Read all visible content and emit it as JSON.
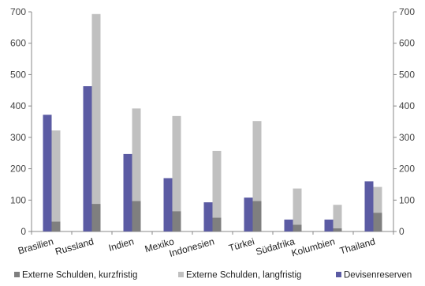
{
  "chart_data": {
    "type": "bar",
    "categories": [
      "Brasilien",
      "Russland",
      "Indien",
      "Mexiko",
      "Indonesien",
      "Türkei",
      "Südafrika",
      "Kolumbien",
      "Thailand"
    ],
    "series": [
      {
        "name": "Devisenreserven",
        "color": "#5b5ba3",
        "values": [
          372,
          463,
          247,
          170,
          93,
          108,
          38,
          38,
          160
        ]
      },
      {
        "name": "Externe Schulden, kurzfristig",
        "color": "#7f7f7f",
        "values": [
          32,
          88,
          97,
          65,
          44,
          97,
          22,
          10,
          60
        ]
      },
      {
        "name": "Externe Schulden, langfristig",
        "color": "#c0c0c0",
        "values": [
          290,
          605,
          295,
          303,
          213,
          255,
          115,
          75,
          82
        ]
      }
    ],
    "stacked_note": "Externe Schulden kurzfristig + langfristig gestapelt",
    "ylim": [
      0,
      700
    ],
    "yticks": [
      "0",
      "100",
      "200",
      "300",
      "400",
      "500",
      "600",
      "700"
    ],
    "secondary_yaxis": true,
    "grid": false,
    "legend_position": "bottom",
    "legend_order": [
      "Externe Schulden, kurzfristig",
      "Externe Schulden, langfristig",
      "Devisenreserven"
    ]
  }
}
